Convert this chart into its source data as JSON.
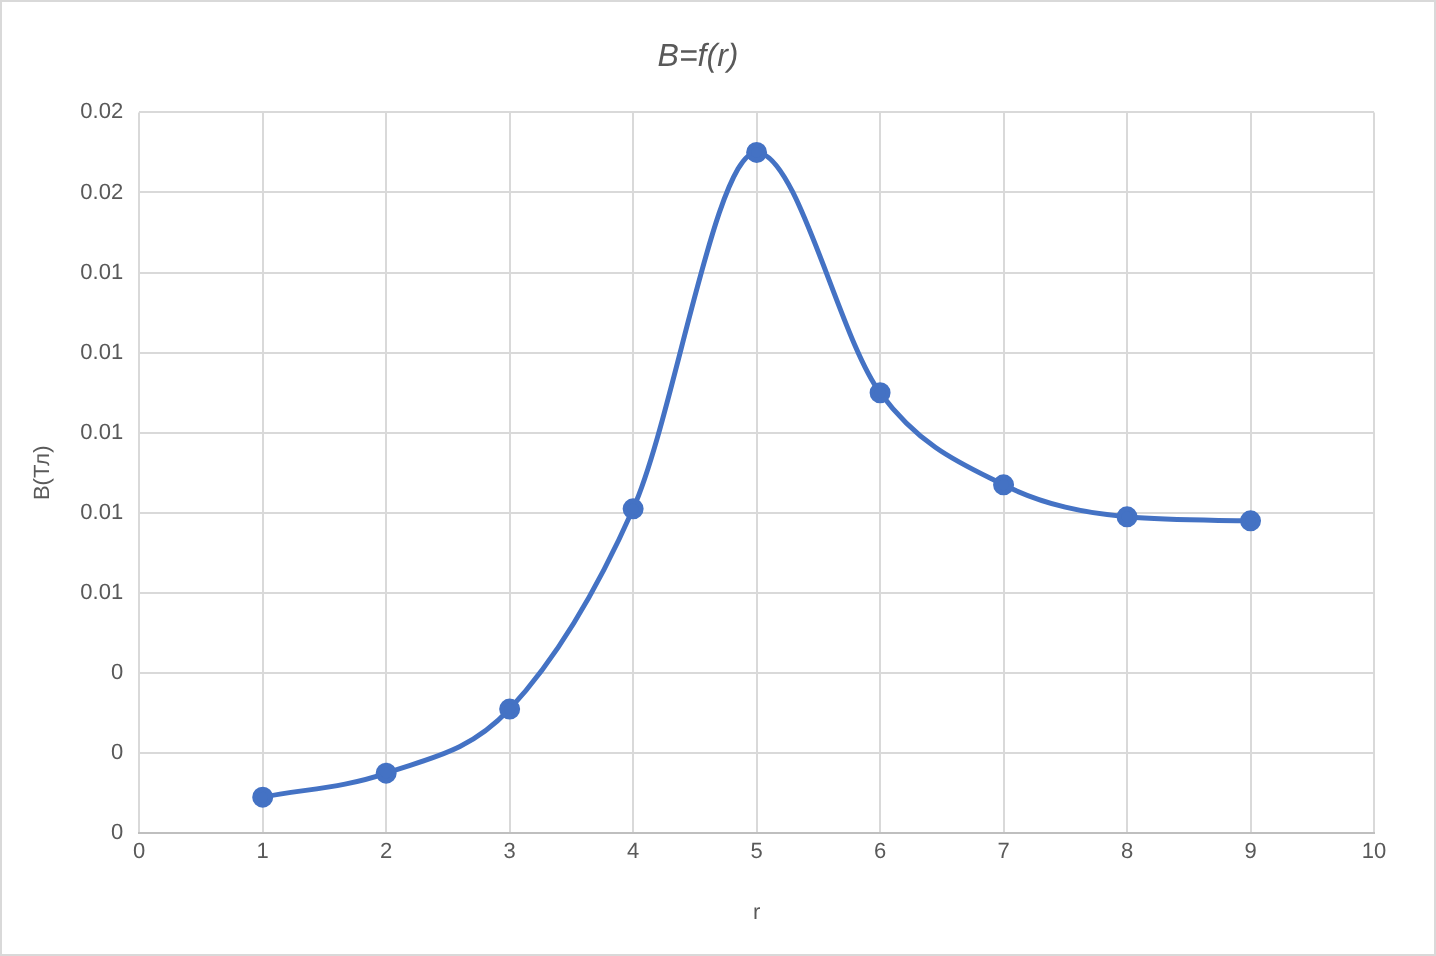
{
  "chart_data": {
    "type": "line",
    "title": "B=f(r)",
    "xlabel": "r",
    "ylabel": "B(Тл)",
    "x": [
      1,
      2,
      3,
      4,
      5,
      6,
      7,
      8,
      9
    ],
    "series": [
      {
        "color": "#4472c4",
        "values": [
          0.0009,
          0.0015,
          0.0031,
          0.0081,
          0.017,
          0.011,
          0.0087,
          0.0079,
          0.0078
        ]
      }
    ],
    "xlim": [
      0,
      10
    ],
    "xticks": [
      0,
      1,
      2,
      3,
      4,
      5,
      6,
      7,
      8,
      9,
      10
    ],
    "ylim": [
      0,
      0.018
    ],
    "yticks": [
      {
        "value": 0,
        "label": "0"
      },
      {
        "value": 0.002,
        "label": "0"
      },
      {
        "value": 0.004,
        "label": "0"
      },
      {
        "value": 0.006,
        "label": "0.01"
      },
      {
        "value": 0.008,
        "label": "0.01"
      },
      {
        "value": 0.01,
        "label": "0.01"
      },
      {
        "value": 0.012,
        "label": "0.01"
      },
      {
        "value": 0.014,
        "label": "0.01"
      },
      {
        "value": 0.016,
        "label": "0.02"
      },
      {
        "value": 0.018,
        "label": "0.02"
      }
    ],
    "grid": true,
    "marker": "circle",
    "line_style": "solid"
  }
}
